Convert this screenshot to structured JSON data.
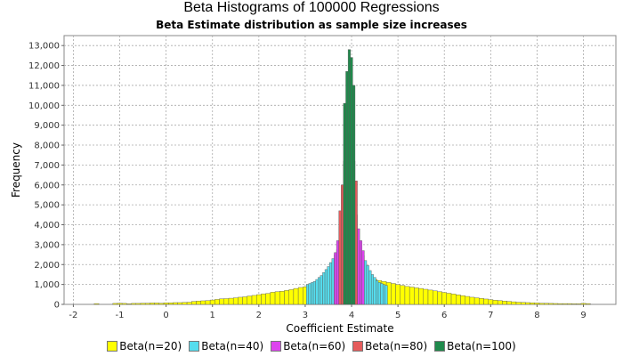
{
  "chart_data": {
    "type": "bar",
    "title": "Beta Histograms of 100000 Regressions",
    "subtitle": "Beta Estimate distribution as sample size increases",
    "xlabel": "Coefficient Estimate",
    "ylabel": "Frequency",
    "xlim": [
      -2.2,
      9.7
    ],
    "ylim": [
      0,
      13500
    ],
    "xticks": [
      -2,
      -1,
      0,
      1,
      2,
      3,
      4,
      5,
      6,
      7,
      8,
      9
    ],
    "yticks": [
      0,
      1000,
      2000,
      3000,
      4000,
      5000,
      6000,
      7000,
      8000,
      9000,
      10000,
      11000,
      12000,
      13000
    ],
    "ytick_labels": [
      "0",
      "1,000",
      "2,000",
      "3,000",
      "4,000",
      "5,000",
      "6,000",
      "7,000",
      "8,000",
      "9,000",
      "10,000",
      "11,000",
      "12,000",
      "13,000"
    ],
    "grid": true,
    "legend_position": "bottom",
    "series": [
      {
        "name": "Beta(n=20)",
        "color": "#ffff00",
        "bin_width": 0.1,
        "x": [
          -1.5,
          -1.1,
          -1.0,
          -0.9,
          -0.8,
          -0.7,
          -0.6,
          -0.5,
          -0.4,
          -0.3,
          -0.2,
          -0.1,
          0.0,
          0.1,
          0.2,
          0.3,
          0.4,
          0.5,
          0.6,
          0.7,
          0.8,
          0.9,
          1.0,
          1.1,
          1.2,
          1.3,
          1.4,
          1.5,
          1.6,
          1.7,
          1.8,
          1.9,
          2.0,
          2.1,
          2.2,
          2.3,
          2.4,
          2.5,
          2.6,
          2.7,
          2.8,
          2.9,
          3.0,
          3.1,
          3.2,
          3.3,
          3.4,
          3.5,
          3.6,
          3.7,
          3.8,
          3.9,
          4.0,
          4.1,
          4.2,
          4.3,
          4.4,
          4.5,
          4.6,
          4.7,
          4.8,
          4.9,
          5.0,
          5.1,
          5.2,
          5.3,
          5.4,
          5.5,
          5.6,
          5.7,
          5.8,
          5.9,
          6.0,
          6.1,
          6.2,
          6.3,
          6.4,
          6.5,
          6.6,
          6.7,
          6.8,
          6.9,
          7.0,
          7.1,
          7.2,
          7.3,
          7.4,
          7.5,
          7.6,
          7.7,
          7.8,
          7.9,
          8.0,
          8.1,
          8.2,
          8.3,
          8.4,
          8.5,
          8.6,
          8.7,
          8.8,
          8.9,
          9.0,
          9.1
        ],
        "values": [
          40,
          50,
          60,
          50,
          30,
          50,
          50,
          60,
          60,
          70,
          70,
          60,
          80,
          80,
          90,
          90,
          100,
          110,
          150,
          170,
          180,
          190,
          220,
          250,
          280,
          290,
          310,
          330,
          360,
          380,
          420,
          450,
          490,
          530,
          550,
          610,
          640,
          660,
          700,
          740,
          800,
          850,
          880,
          950,
          1000,
          1050,
          1100,
          1150,
          1200,
          1250,
          1300,
          1330,
          1350,
          1340,
          1320,
          1300,
          1280,
          1250,
          1200,
          1150,
          1100,
          1050,
          1000,
          950,
          900,
          870,
          830,
          800,
          760,
          720,
          680,
          640,
          600,
          560,
          520,
          480,
          440,
          400,
          360,
          330,
          300,
          270,
          240,
          210,
          190,
          170,
          150,
          130,
          110,
          100,
          90,
          80,
          70,
          60,
          55,
          50,
          45,
          40,
          40,
          40,
          30,
          30,
          50,
          40
        ]
      },
      {
        "name": "Beta(n=40)",
        "color": "#55ddee",
        "bin_width": 0.05,
        "x": [
          3.05,
          3.1,
          3.15,
          3.2,
          3.25,
          3.3,
          3.35,
          3.4,
          3.45,
          3.5,
          3.55,
          3.6,
          3.65,
          3.7,
          3.75,
          3.8,
          3.85,
          3.9,
          3.95,
          4.0,
          4.05,
          4.1,
          4.15,
          4.2,
          4.25,
          4.3,
          4.35,
          4.4,
          4.45,
          4.5,
          4.55,
          4.6,
          4.65,
          4.7,
          4.75
        ],
        "values": [
          1000,
          1050,
          1100,
          1150,
          1250,
          1350,
          1450,
          1600,
          1750,
          1900,
          2100,
          2300,
          2500,
          2750,
          3000,
          3200,
          3380,
          3460,
          3420,
          3380,
          3300,
          3150,
          2950,
          2700,
          2450,
          2200,
          1950,
          1700,
          1500,
          1350,
          1200,
          1100,
          1050,
          1000,
          950
        ]
      },
      {
        "name": "Beta(n=60)",
        "color": "#dd44ee",
        "bin_width": 0.05,
        "x": [
          3.65,
          3.7,
          3.75,
          3.8,
          3.85,
          3.9,
          3.95,
          4.0,
          4.05,
          4.1,
          4.15,
          4.2,
          4.25
        ],
        "values": [
          2600,
          3200,
          3900,
          4600,
          5300,
          5900,
          6300,
          5800,
          5200,
          4500,
          3800,
          3200,
          2700
        ]
      },
      {
        "name": "Beta(n=80)",
        "color": "#e55c5c",
        "bin_width": 0.05,
        "x": [
          3.75,
          3.8,
          3.85,
          3.9,
          3.95,
          4.0,
          4.05,
          4.1
        ],
        "values": [
          4700,
          6000,
          7200,
          8000,
          8600,
          8000,
          7200,
          6200
        ]
      },
      {
        "name": "Beta(n=100)",
        "color": "#1f8a4c",
        "bin_width": 0.05,
        "x": [
          3.85,
          3.9,
          3.95,
          4.0,
          4.05
        ],
        "values": [
          10100,
          11700,
          12800,
          12400,
          11000
        ]
      }
    ]
  }
}
